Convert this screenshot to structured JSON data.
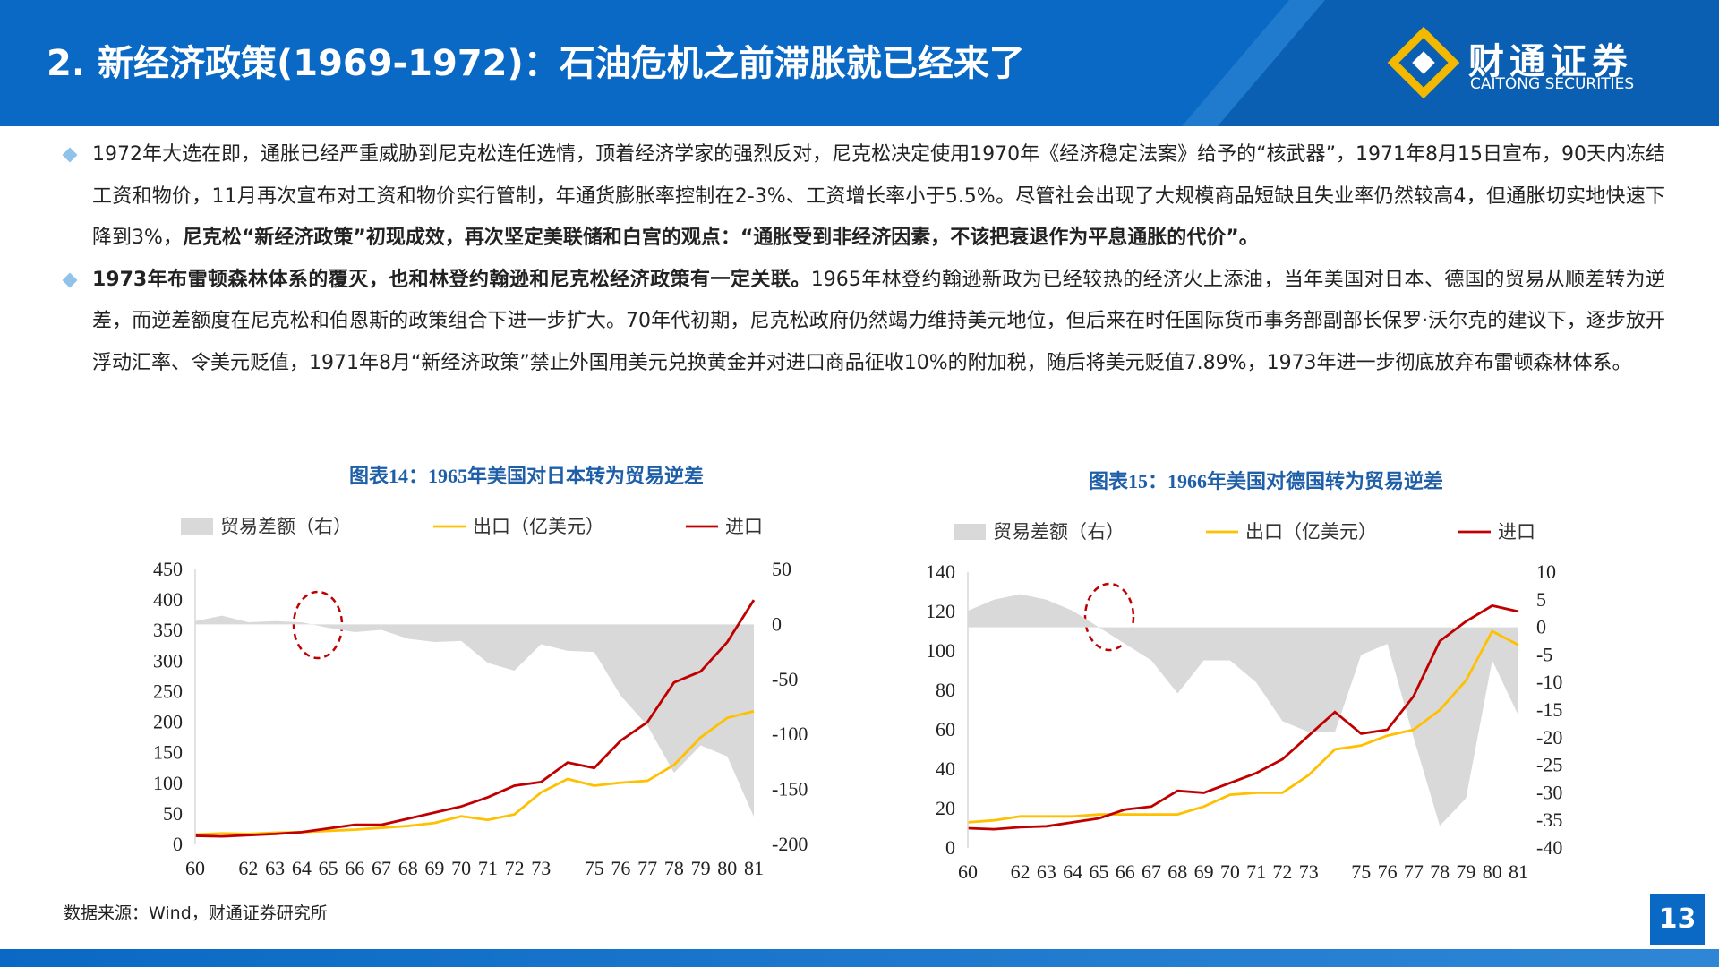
{
  "header": {
    "title": "2. 新经济政策(1969-1972)：石油危机之前滞胀就已经来了",
    "logo_cn": "财通证券",
    "logo_en": "CAITONG SECURITIES"
  },
  "bullets": [
    [
      {
        "text": "1972年大选在即，通胀已经严重威胁到尼克松连任选情，顶着经济学家的强烈反对，尼克松决定使用1970年《经济稳定法案》给予的“核武器”，1971年8月15日宣布，90天内冻结工资和物价，11月再次宣布对工资和物价实行管制，年通货膨胀率控制在2-3%、工资增长率小于5.5%。尽管社会出现了大规模商品短缺且失业率仍然较高4，但通胀切实地快速下降到3%，",
        "bold": false
      },
      {
        "text": "尼克松“新经济政策”初现成效，再次坚定美联储和白宫的观点：“通胀受到非经济因素，不该把衰退作为平息通胀的代价”。",
        "bold": true
      }
    ],
    [
      {
        "text": "1973年布雷顿森林体系的覆灭，也和林登约翰逊和尼克松经济政策有一定关联。",
        "bold": true
      },
      {
        "text": "1965年林登约翰逊新政为已经较热的经济火上添油，当年美国对日本、德国的贸易从顺差转为逆差，而逆差额度在尼克松和伯恩斯的政策组合下进一步扩大。70年代初期，尼克松政府仍然竭力维持美元地位，但后来在时任国际货币事务部副部长保罗·沃尔克的建议下，逐步放开浮动汇率、令美元贬值，1971年8月“新经济政策”禁止外国用美元兑换黄金并对进口商品征收10%的附加税，随后将美元贬值7.89%，1973年进一步彻底放弃布雷顿森林体系。",
        "bold": false
      }
    ]
  ],
  "chart_data": [
    {
      "type": "combo",
      "title": "图表14：1965年美国对日本转为贸易逆差",
      "categories": [
        "60",
        null,
        "62",
        "63",
        "64",
        "65",
        "66",
        "67",
        "68",
        "69",
        "70",
        "71",
        "72",
        "73",
        null,
        "75",
        "76",
        "77",
        "78",
        "79",
        "80",
        "81"
      ],
      "ylim": [
        0,
        450
      ],
      "yticks": [
        0,
        50,
        100,
        150,
        200,
        250,
        300,
        350,
        400,
        450
      ],
      "y2lim": [
        -200,
        50
      ],
      "y2ticks": [
        -200,
        -150,
        -100,
        -50,
        0,
        50
      ],
      "series": [
        {
          "name": "贸易差额（右）",
          "type": "area",
          "axis": "y2",
          "color": "#d9d9d9",
          "values": [
            3,
            8,
            2,
            3,
            2,
            -3,
            -7,
            -5,
            -13,
            -16,
            -15,
            -35,
            -42,
            -18,
            -24,
            -25,
            -65,
            -92,
            -135,
            -110,
            -120,
            -175
          ]
        },
        {
          "name": "出口（亿美元）",
          "type": "line",
          "color": "#ffc000",
          "values": [
            16,
            18,
            17,
            19,
            20,
            22,
            24,
            27,
            30,
            35,
            46,
            40,
            49,
            85,
            107,
            96,
            101,
            104,
            130,
            175,
            207,
            218
          ]
        },
        {
          "name": "进口",
          "type": "line",
          "color": "#c00000",
          "values": [
            14,
            13,
            15,
            17,
            20,
            26,
            32,
            32,
            42,
            52,
            62,
            77,
            96,
            102,
            134,
            125,
            170,
            200,
            265,
            283,
            331,
            400
          ]
        }
      ]
    },
    {
      "type": "combo",
      "title": "图表15：1966年美国对德国转为贸易逆差",
      "categories": [
        "60",
        null,
        "62",
        "63",
        "64",
        "65",
        "66",
        "67",
        "68",
        "69",
        "70",
        "71",
        "72",
        "73",
        null,
        "75",
        "76",
        "77",
        "78",
        "79",
        "80",
        "81"
      ],
      "ylim": [
        0,
        140
      ],
      "yticks": [
        0,
        20,
        40,
        60,
        80,
        100,
        120,
        140
      ],
      "y2lim": [
        -40,
        10
      ],
      "y2ticks": [
        -40,
        -35,
        -30,
        -25,
        -20,
        -15,
        -10,
        -5,
        0,
        5,
        10
      ],
      "series": [
        {
          "name": "贸易差额（右）",
          "type": "area",
          "axis": "y2",
          "color": "#d9d9d9",
          "values": [
            3,
            5,
            6,
            5,
            3,
            0,
            -3,
            -6,
            -12,
            -6,
            -6,
            -10,
            -17,
            -19,
            -19,
            -5,
            -3,
            -20,
            -36,
            -31,
            -6,
            -16
          ]
        },
        {
          "name": "出口（亿美元）",
          "type": "line",
          "color": "#ffc000",
          "values": [
            13,
            14,
            16,
            16,
            16,
            17,
            17,
            17,
            17,
            21,
            27,
            28,
            28,
            37,
            50,
            52,
            57,
            60,
            70,
            85,
            110,
            103
          ]
        },
        {
          "name": "进口",
          "type": "line",
          "color": "#c00000",
          "values": [
            10,
            9.5,
            10.5,
            11,
            13,
            15,
            19.5,
            21,
            29,
            28,
            33,
            38,
            45,
            57,
            69,
            58,
            60,
            77,
            105,
            115,
            123,
            120
          ]
        }
      ]
    }
  ],
  "source": "数据来源：Wind，财通证券研究所",
  "page_number": "13"
}
